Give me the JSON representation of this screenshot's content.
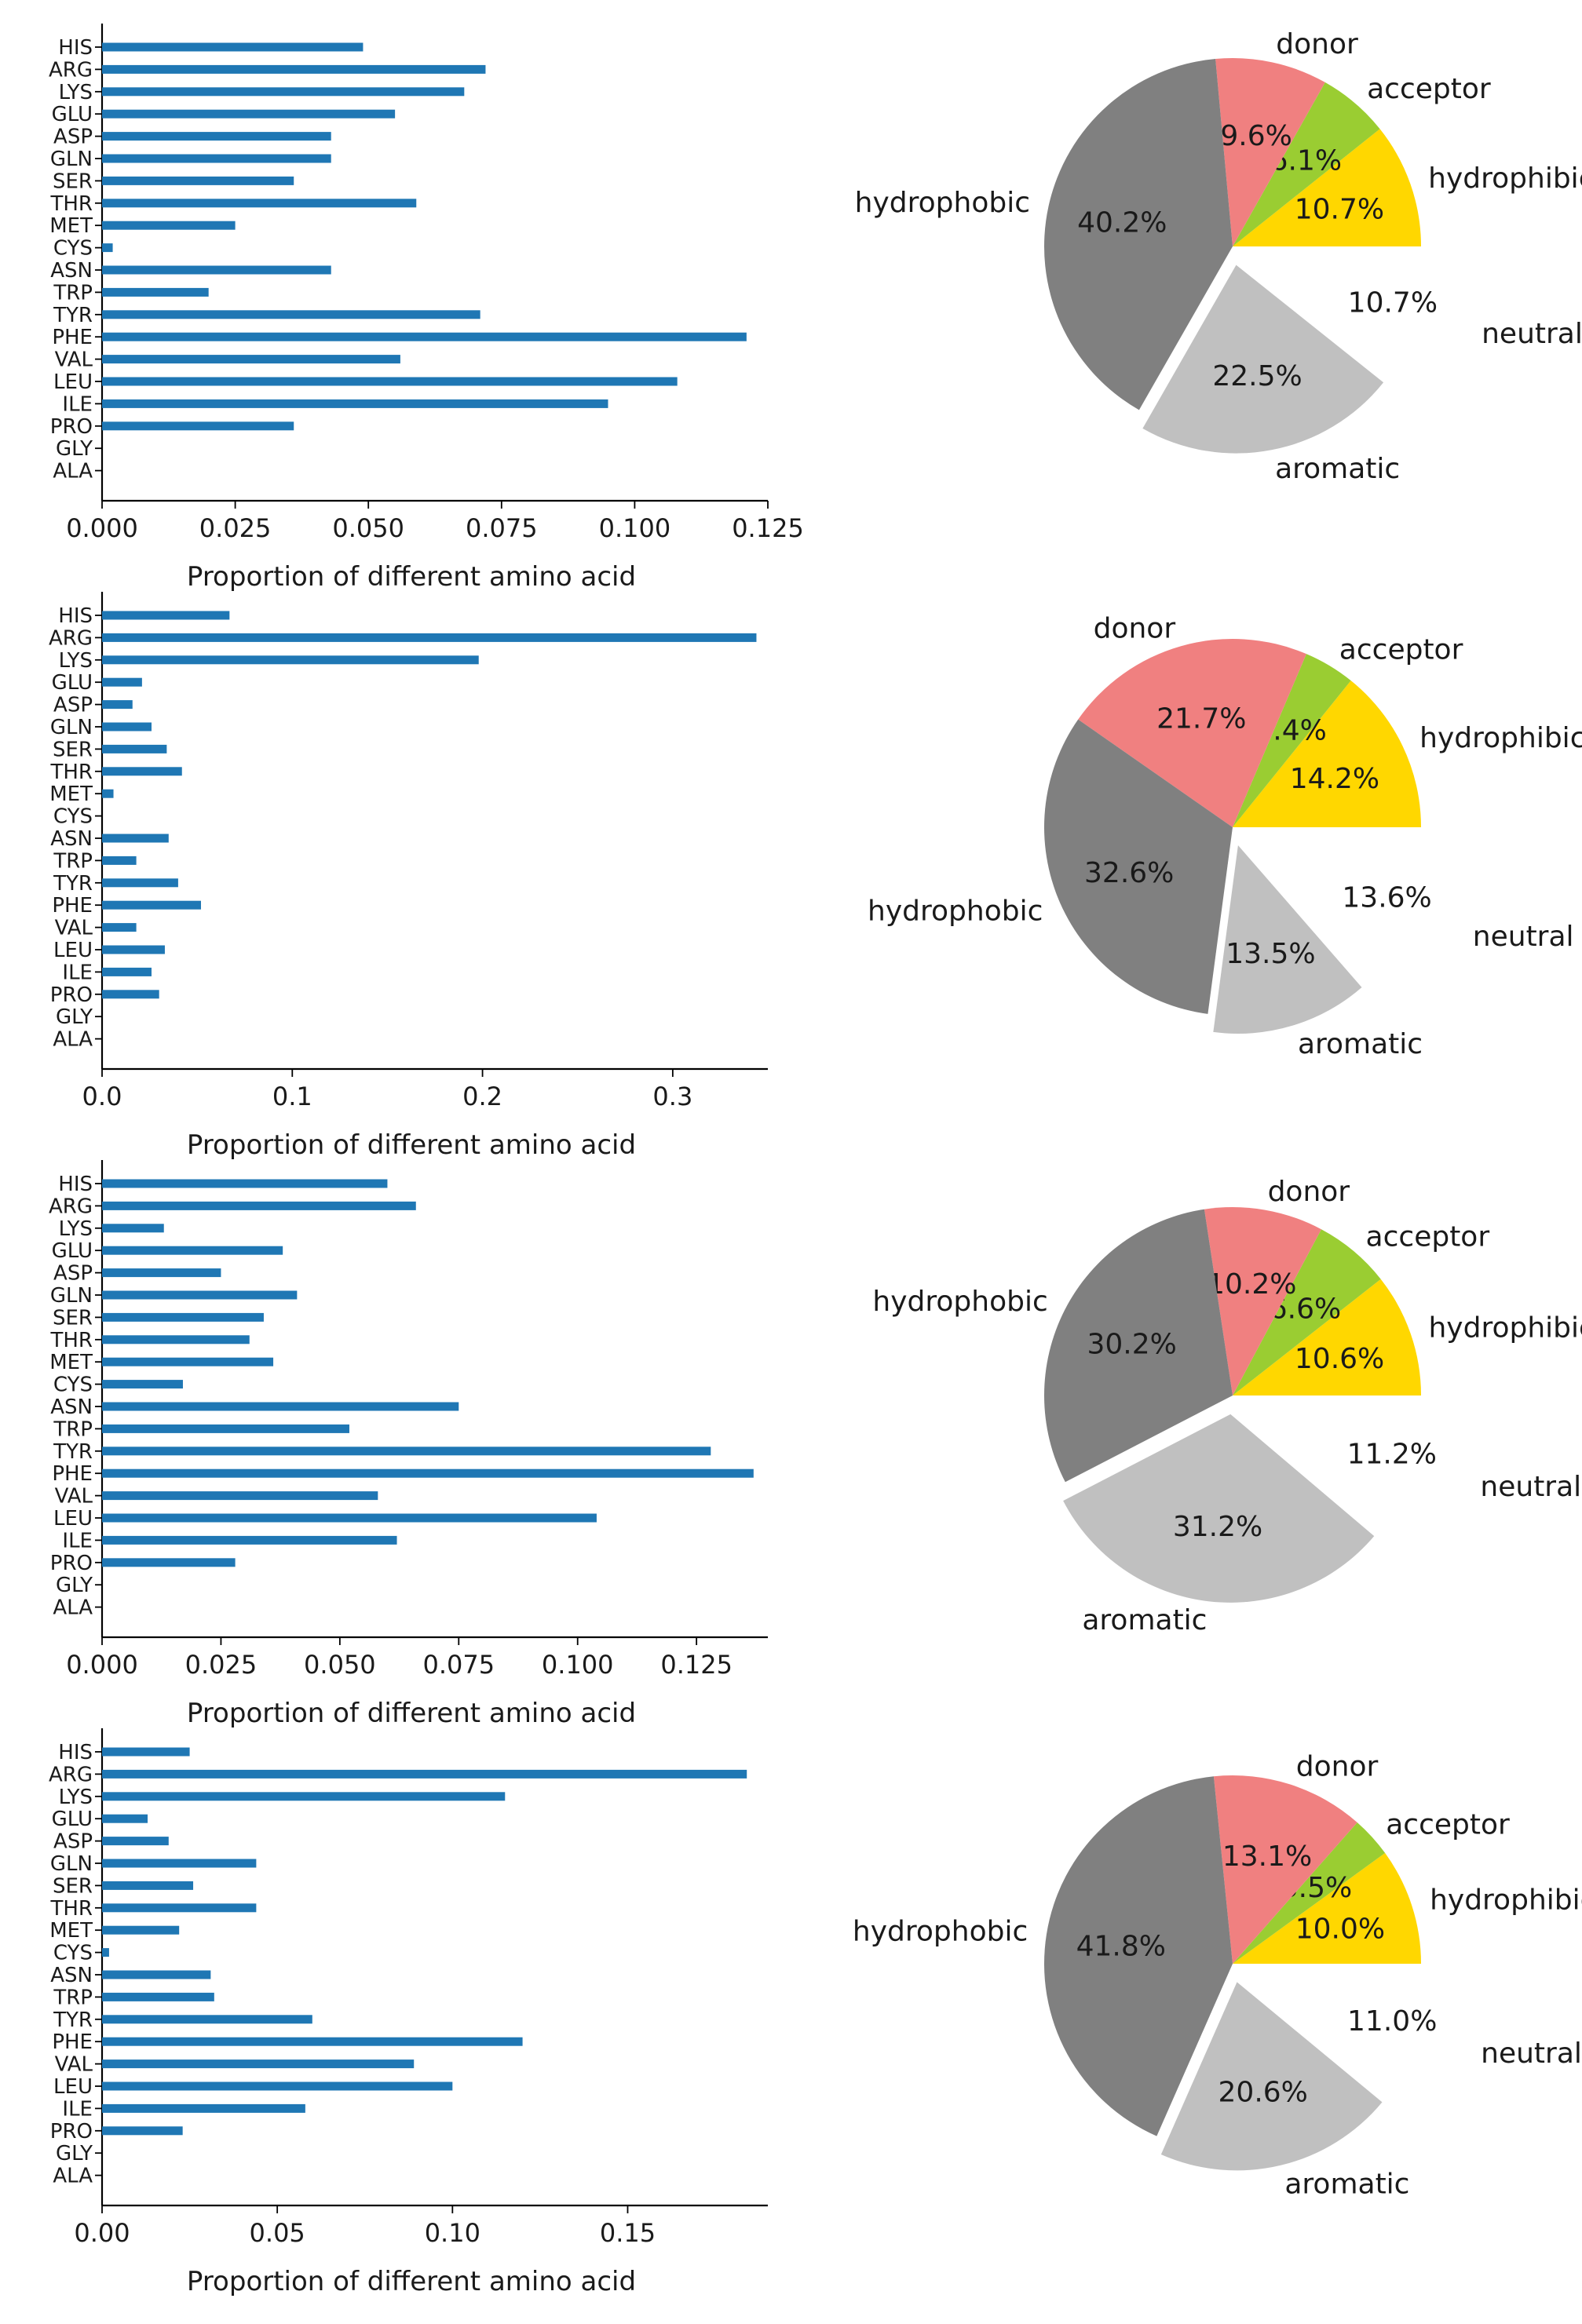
{
  "chart_data": [
    {
      "type": "bar",
      "orientation": "horizontal",
      "categories": [
        "HIS",
        "ARG",
        "LYS",
        "GLU",
        "ASP",
        "GLN",
        "SER",
        "THR",
        "MET",
        "CYS",
        "ASN",
        "TRP",
        "TYR",
        "PHE",
        "VAL",
        "LEU",
        "ILE",
        "PRO",
        "GLY",
        "ALA"
      ],
      "values": [
        0.049,
        0.072,
        0.068,
        0.055,
        0.043,
        0.043,
        0.036,
        0.059,
        0.025,
        0.002,
        0.043,
        0.02,
        0.071,
        0.121,
        0.056,
        0.108,
        0.095,
        0.036,
        0,
        0
      ],
      "xlabel": "Proportion of different amino acid",
      "xlim": [
        0,
        0.125
      ],
      "xticks": [
        "0.000",
        "0.025",
        "0.050",
        "0.075",
        "0.100",
        "0.125"
      ],
      "bar_color": "#1f77b4"
    },
    {
      "type": "pie",
      "labels": [
        "hydrophibic",
        "acceptor",
        "donor",
        "hydrophobic",
        "aromatic",
        "neutral"
      ],
      "values": [
        10.7,
        6.1,
        9.6,
        40.2,
        22.5,
        10.7
      ],
      "pct_labels": [
        "10.7%",
        "6.1%",
        "9.6%",
        "40.2%",
        "22.5%",
        "10.7%"
      ],
      "colors": [
        "#ffd700",
        "#9acd32",
        "#f08080",
        "#808080",
        "#c0c0c0",
        "#ffffff"
      ],
      "explode": [
        0,
        0,
        0,
        0,
        0.1,
        0.3
      ],
      "startangle": 0
    },
    {
      "type": "bar",
      "orientation": "horizontal",
      "categories": [
        "HIS",
        "ARG",
        "LYS",
        "GLU",
        "ASP",
        "GLN",
        "SER",
        "THR",
        "MET",
        "CYS",
        "ASN",
        "TRP",
        "TYR",
        "PHE",
        "VAL",
        "LEU",
        "ILE",
        "PRO",
        "GLY",
        "ALA"
      ],
      "values": [
        0.067,
        0.344,
        0.198,
        0.021,
        0.016,
        0.026,
        0.034,
        0.042,
        0.006,
        0,
        0.035,
        0.018,
        0.04,
        0.052,
        0.018,
        0.033,
        0.026,
        0.03,
        0,
        0
      ],
      "xlabel": "Proportion of different amino acid",
      "xlim": [
        0,
        0.35
      ],
      "xticks": [
        "0.0",
        "0.1",
        "0.2",
        "0.3"
      ],
      "bar_color": "#1f77b4"
    },
    {
      "type": "pie",
      "labels": [
        "hydrophibic",
        "acceptor",
        "donor",
        "hydrophobic",
        "aromatic",
        "neutral"
      ],
      "values": [
        14.2,
        4.4,
        21.7,
        32.6,
        13.5,
        13.6
      ],
      "pct_labels": [
        "14.2%",
        "4.4%",
        "21.7%",
        "32.6%",
        "13.5%",
        "13.6%"
      ],
      "colors": [
        "#ffd700",
        "#9acd32",
        "#f08080",
        "#808080",
        "#c0c0c0",
        "#ffffff"
      ],
      "explode": [
        0,
        0,
        0,
        0,
        0.1,
        0.3
      ],
      "startangle": 0
    },
    {
      "type": "bar",
      "orientation": "horizontal",
      "categories": [
        "HIS",
        "ARG",
        "LYS",
        "GLU",
        "ASP",
        "GLN",
        "SER",
        "THR",
        "MET",
        "CYS",
        "ASN",
        "TRP",
        "TYR",
        "PHE",
        "VAL",
        "LEU",
        "ILE",
        "PRO",
        "GLY",
        "ALA"
      ],
      "values": [
        0.06,
        0.066,
        0.013,
        0.038,
        0.025,
        0.041,
        0.034,
        0.031,
        0.036,
        0.017,
        0.075,
        0.052,
        0.128,
        0.137,
        0.058,
        0.104,
        0.062,
        0.028,
        0,
        0
      ],
      "xlabel": "Proportion of different amino acid",
      "xlim": [
        0,
        0.14
      ],
      "xticks": [
        "0.000",
        "0.025",
        "0.050",
        "0.075",
        "0.100",
        "0.125"
      ],
      "bar_color": "#1f77b4"
    },
    {
      "type": "pie",
      "labels": [
        "hydrophibic",
        "acceptor",
        "donor",
        "hydrophobic",
        "aromatic",
        "neutral"
      ],
      "values": [
        10.6,
        6.6,
        10.2,
        30.2,
        31.2,
        11.2
      ],
      "pct_labels": [
        "10.6%",
        "6.6%",
        "10.2%",
        "30.2%",
        "31.2%",
        "11.2%"
      ],
      "colors": [
        "#ffd700",
        "#9acd32",
        "#f08080",
        "#808080",
        "#c0c0c0",
        "#ffffff"
      ],
      "explode": [
        0,
        0,
        0,
        0,
        0.1,
        0.3
      ],
      "startangle": 0
    },
    {
      "type": "bar",
      "orientation": "horizontal",
      "categories": [
        "HIS",
        "ARG",
        "LYS",
        "GLU",
        "ASP",
        "GLN",
        "SER",
        "THR",
        "MET",
        "CYS",
        "ASN",
        "TRP",
        "TYR",
        "PHE",
        "VAL",
        "LEU",
        "ILE",
        "PRO",
        "GLY",
        "ALA"
      ],
      "values": [
        0.025,
        0.184,
        0.115,
        0.013,
        0.019,
        0.044,
        0.026,
        0.044,
        0.022,
        0.002,
        0.031,
        0.032,
        0.06,
        0.12,
        0.089,
        0.1,
        0.058,
        0.023,
        0,
        0
      ],
      "xlabel": "Proportion of different amino acid",
      "xlim": [
        0,
        0.19
      ],
      "xticks": [
        "0.00",
        "0.05",
        "0.10",
        "0.15"
      ],
      "bar_color": "#1f77b4"
    },
    {
      "type": "pie",
      "labels": [
        "hydrophibic",
        "acceptor",
        "donor",
        "hydrophobic",
        "aromatic",
        "neutral"
      ],
      "values": [
        10.0,
        3.5,
        13.1,
        41.8,
        20.6,
        11.0
      ],
      "pct_labels": [
        "10.0%",
        "3.5%",
        "13.1%",
        "41.8%",
        "20.6%",
        "11.0%"
      ],
      "colors": [
        "#ffd700",
        "#9acd32",
        "#f08080",
        "#808080",
        "#c0c0c0",
        "#ffffff"
      ],
      "explode": [
        0,
        0,
        0,
        0,
        0.1,
        0.3
      ],
      "startangle": 0
    }
  ]
}
